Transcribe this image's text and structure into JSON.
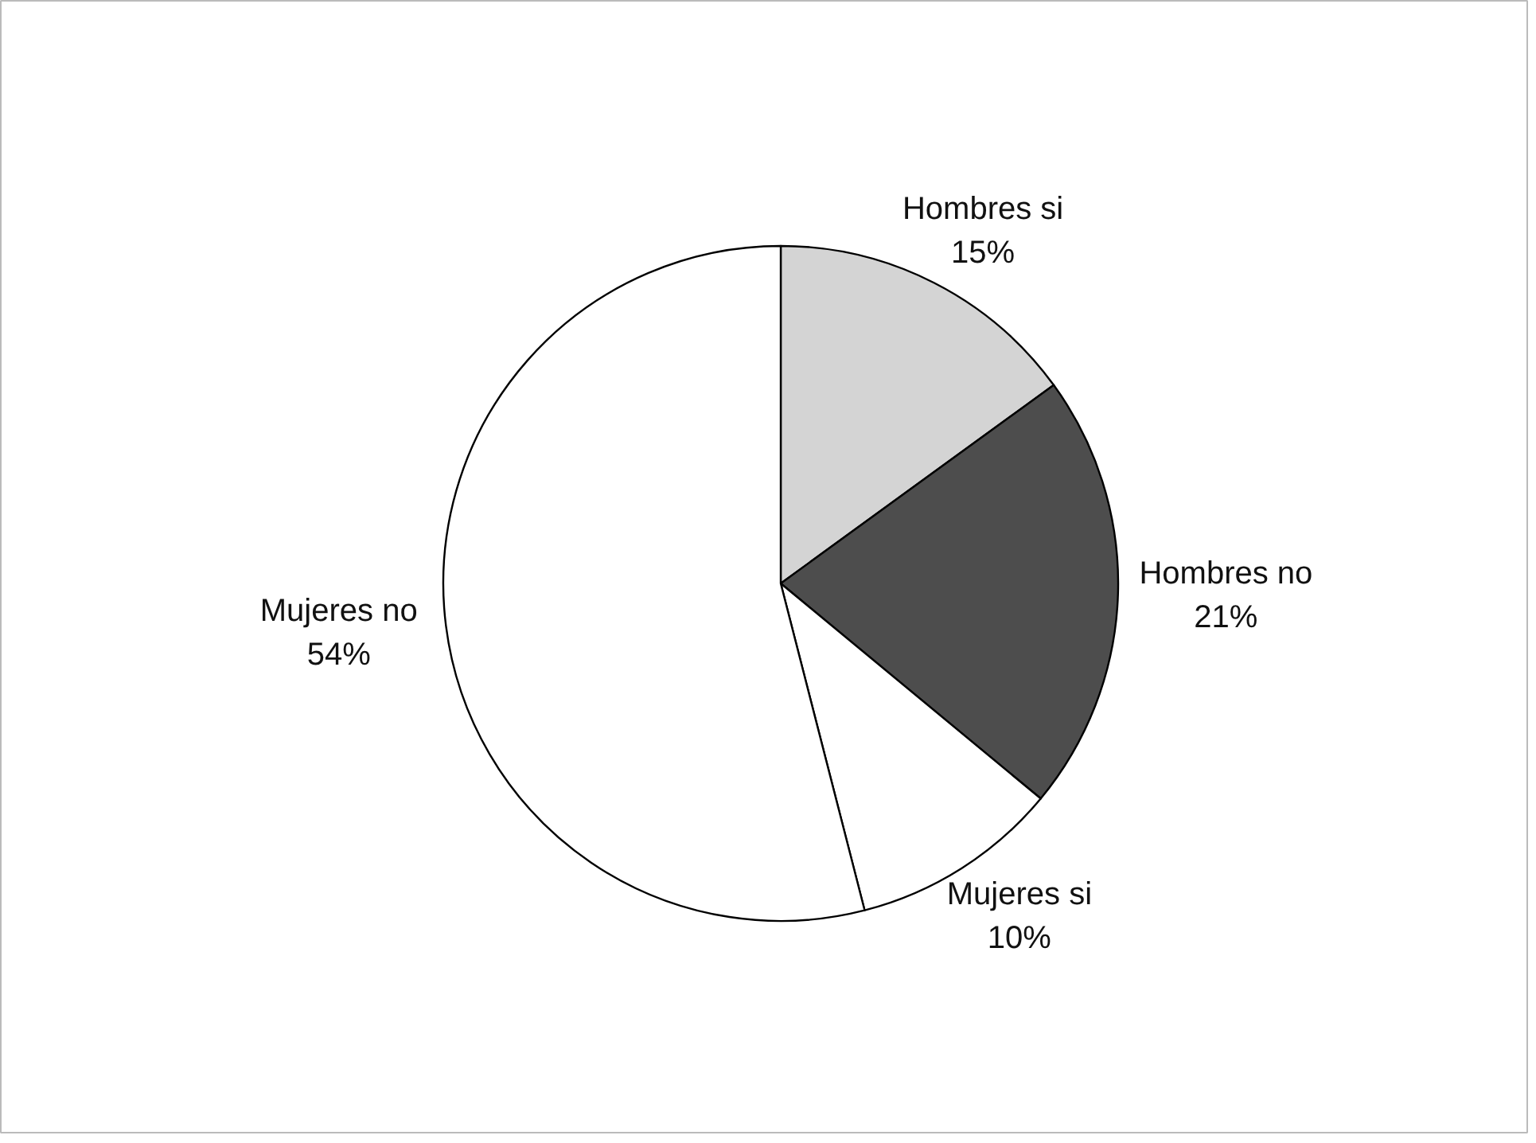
{
  "chart_data": {
    "type": "pie",
    "categories": [
      "Hombres si",
      "Hombres no",
      "Mujeres si",
      "Mujeres no"
    ],
    "values": [
      15,
      21,
      10,
      54
    ],
    "value_labels": [
      "15%",
      "21%",
      "10%",
      "54%"
    ],
    "colors": [
      "#d4d4d4",
      "#4d4d4d",
      "#ffffff",
      "#ffffff"
    ]
  }
}
